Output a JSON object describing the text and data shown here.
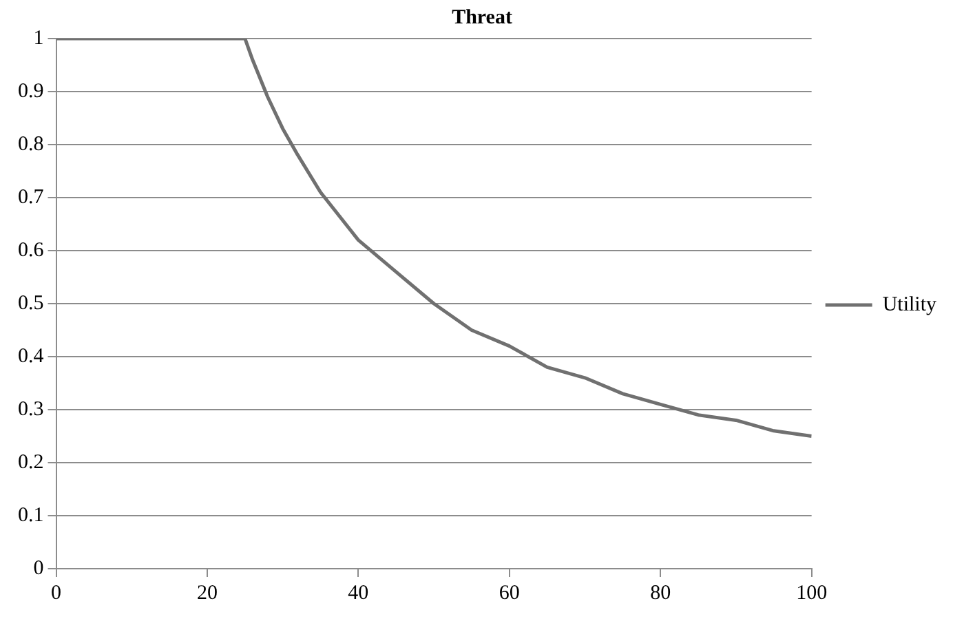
{
  "chart_data": {
    "type": "line",
    "title": "Threat",
    "x": [
      0,
      5,
      10,
      15,
      20,
      24,
      25,
      26,
      28,
      30,
      32,
      35,
      40,
      45,
      50,
      55,
      60,
      65,
      70,
      75,
      80,
      85,
      90,
      95,
      100
    ],
    "series": [
      {
        "name": "Utility",
        "color": "#707070",
        "values": [
          1,
          1,
          1,
          1,
          1,
          1,
          1,
          0.96,
          0.89,
          0.83,
          0.78,
          0.71,
          0.62,
          0.56,
          0.5,
          0.45,
          0.42,
          0.38,
          0.36,
          0.33,
          0.31,
          0.29,
          0.28,
          0.26,
          0.25
        ]
      }
    ],
    "xlim": [
      0,
      100
    ],
    "xticks": [
      0,
      20,
      40,
      60,
      80,
      100
    ],
    "ylim": [
      0,
      1
    ],
    "yticks": [
      0,
      0.1,
      0.2,
      0.3,
      0.4,
      0.5,
      0.6,
      0.7,
      0.8,
      0.9,
      1
    ],
    "grid": "y",
    "legend": "right",
    "marker": "none"
  }
}
